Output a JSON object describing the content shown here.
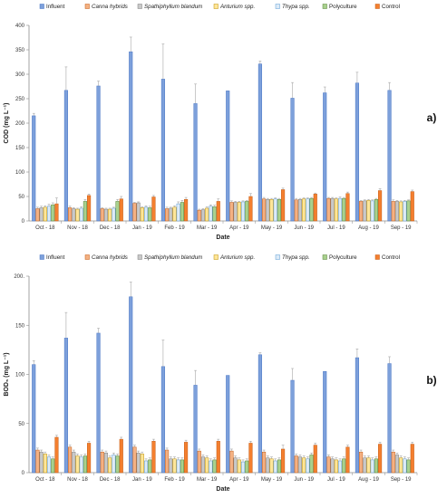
{
  "chart_data": [
    {
      "type": "bar",
      "panel_label": "a)",
      "ylabel": "COD (mg  L⁻¹)",
      "xlabel": "Date",
      "ylim": [
        0,
        400
      ],
      "yticks": [
        0,
        50,
        100,
        150,
        200,
        250,
        300,
        350,
        400
      ],
      "grid": false,
      "legend_position": "top",
      "categories": [
        "Oct - 18",
        "Nov - 18",
        "Dec - 18",
        "Jan - 19",
        "Feb - 19",
        "Mar - 19",
        "Apr - 19",
        "May - 19",
        "Jun - 19",
        "Jul - 19",
        "Aug - 19",
        "Sep - 19"
      ],
      "series": [
        {
          "name": "Influent",
          "italic": false,
          "color": "#7da0db",
          "edge": "#4472c4",
          "values": [
            215,
            267,
            276,
            346,
            290,
            240,
            266,
            321,
            251,
            262,
            282,
            267
          ],
          "errors": [
            5,
            48,
            10,
            30,
            72,
            40,
            0,
            6,
            32,
            12,
            22,
            16
          ]
        },
        {
          "name": "Canna hybrids",
          "italic": true,
          "color": "#f4b183",
          "edge": "#c55a11",
          "values": [
            25,
            27,
            25,
            36,
            25,
            22,
            38,
            45,
            43,
            46,
            40,
            40
          ],
          "errors": [
            3,
            3,
            2,
            2,
            3,
            2,
            3,
            3,
            3,
            2,
            2,
            3
          ]
        },
        {
          "name": "Spathiphyllum blandum",
          "italic": true,
          "color": "#c9c9c9",
          "edge": "#7f7f7f",
          "values": [
            27,
            25,
            24,
            37,
            26,
            23,
            38,
            44,
            44,
            46,
            41,
            40
          ],
          "errors": [
            3,
            2,
            2,
            2,
            2,
            2,
            2,
            2,
            2,
            2,
            2,
            2
          ]
        },
        {
          "name": "Anturium spp.",
          "italic": true,
          "color": "#ffe699",
          "edge": "#bf9000",
          "values": [
            28,
            24,
            24,
            27,
            28,
            26,
            38,
            44,
            45,
            45,
            42,
            39
          ],
          "errors": [
            3,
            2,
            2,
            2,
            3,
            3,
            2,
            2,
            2,
            2,
            2,
            2
          ]
        },
        {
          "name": "Thypa spp.",
          "italic": true,
          "color": "#ddebf7",
          "edge": "#5b9bd5",
          "values": [
            30,
            26,
            26,
            28,
            35,
            30,
            39,
            45,
            45,
            46,
            41,
            40
          ],
          "errors": [
            4,
            3,
            2,
            3,
            4,
            3,
            2,
            2,
            2,
            3,
            2,
            2
          ]
        },
        {
          "name": "Polyculture",
          "italic": false,
          "color": "#a9d18e",
          "edge": "#548235",
          "values": [
            33,
            40,
            40,
            27,
            38,
            29,
            40,
            44,
            46,
            46,
            44,
            41
          ],
          "errors": [
            4,
            4,
            4,
            3,
            4,
            3,
            2,
            2,
            2,
            2,
            2,
            2
          ]
        },
        {
          "name": "Control",
          "italic": false,
          "color": "#f47f2f",
          "edge": "#c55a11",
          "values": [
            35,
            52,
            45,
            49,
            44,
            40,
            50,
            64,
            55,
            56,
            62,
            60
          ],
          "errors": [
            12,
            3,
            5,
            3,
            4,
            5,
            6,
            3,
            2,
            3,
            4,
            3
          ]
        }
      ]
    },
    {
      "type": "bar",
      "panel_label": "b)",
      "ylabel": "BOD₅ (mg  L⁻¹)",
      "xlabel": "Date",
      "ylim": [
        0,
        200
      ],
      "yticks": [
        0,
        50,
        100,
        150,
        200
      ],
      "ytick_labels": [
        "0",
        "50",
        "100",
        "150",
        "200."
      ],
      "grid": false,
      "legend_position": "top",
      "categories": [
        "Oct - 18",
        "Nov - 18",
        "Dec - 18",
        "Jan - 19",
        "Feb - 19",
        "Mar - 19",
        "Apr - 19",
        "May - 19",
        "Jun - 19",
        "Jul - 19",
        "Aug - 19",
        "Sep - 19"
      ],
      "series": [
        {
          "name": "Influent",
          "italic": false,
          "color": "#7da0db",
          "edge": "#4472c4",
          "values": [
            110,
            137,
            142,
            179,
            108,
            89,
            99,
            120,
            94,
            103,
            117,
            111
          ],
          "errors": [
            4,
            26,
            5,
            15,
            27,
            15,
            0,
            2,
            12,
            0,
            9,
            7
          ]
        },
        {
          "name": "Canna hybrids",
          "italic": true,
          "color": "#f4b183",
          "edge": "#c55a11",
          "values": [
            23,
            26,
            21,
            26,
            23,
            22,
            22,
            21,
            17,
            16,
            21,
            21
          ],
          "errors": [
            2,
            2,
            2,
            2,
            2,
            2,
            2,
            2,
            2,
            2,
            2,
            2
          ]
        },
        {
          "name": "Spathiphyllum blandum",
          "italic": true,
          "color": "#c9c9c9",
          "edge": "#7f7f7f",
          "values": [
            21,
            21,
            20,
            20,
            14,
            16,
            15,
            15,
            16,
            14,
            15,
            18
          ],
          "errors": [
            2,
            2,
            2,
            2,
            2,
            2,
            2,
            2,
            2,
            2,
            2,
            2
          ]
        },
        {
          "name": "Anturium spp.",
          "italic": true,
          "color": "#ffe699",
          "edge": "#bf9000",
          "values": [
            19,
            17,
            15,
            19,
            14,
            15,
            13,
            14,
            15,
            13,
            15,
            15
          ],
          "errors": [
            2,
            2,
            2,
            2,
            2,
            2,
            2,
            2,
            2,
            2,
            2,
            2
          ]
        },
        {
          "name": "Thypa spp.",
          "italic": true,
          "color": "#ddebf7",
          "edge": "#5b9bd5",
          "values": [
            16,
            16,
            18,
            12,
            13,
            12,
            11,
            12,
            14,
            12,
            13,
            14
          ],
          "errors": [
            2,
            2,
            2,
            2,
            2,
            2,
            2,
            2,
            2,
            2,
            2,
            2
          ]
        },
        {
          "name": "Polyculture",
          "italic": false,
          "color": "#a9d18e",
          "edge": "#548235",
          "values": [
            14,
            17,
            17,
            13,
            13,
            13,
            12,
            13,
            18,
            14,
            14,
            13
          ],
          "errors": [
            2,
            2,
            2,
            2,
            2,
            2,
            2,
            2,
            2,
            2,
            2,
            2
          ]
        },
        {
          "name": "Control",
          "italic": false,
          "color": "#f47f2f",
          "edge": "#c55a11",
          "values": [
            36,
            30,
            34,
            32,
            31,
            32,
            30,
            24,
            28,
            26,
            29,
            29
          ],
          "errors": [
            2,
            2,
            2,
            2,
            2,
            2,
            2,
            4,
            2,
            2,
            2,
            2
          ]
        }
      ]
    }
  ]
}
